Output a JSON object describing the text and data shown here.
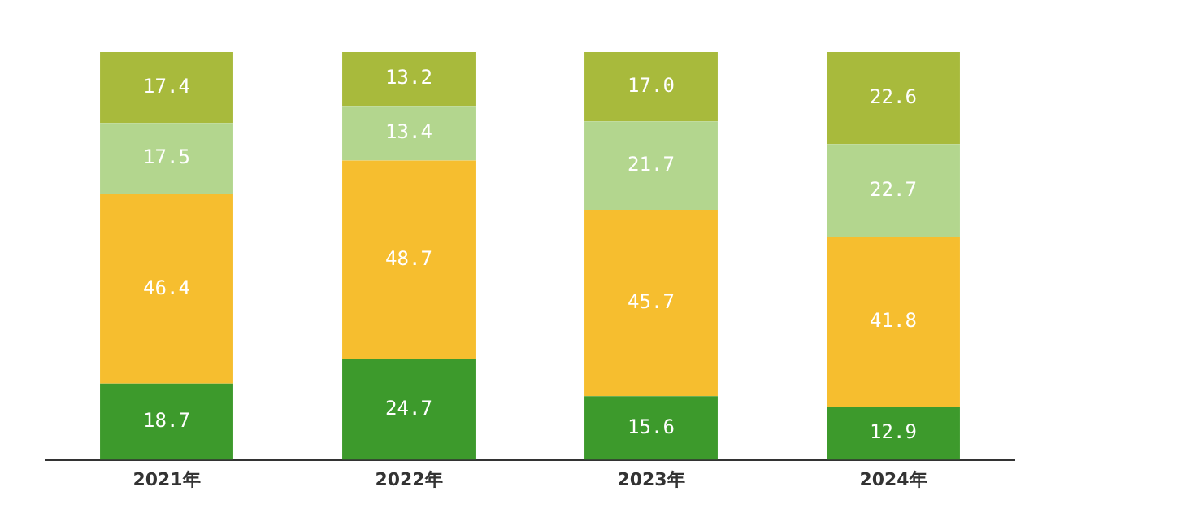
{
  "chart_data": {
    "type": "bar",
    "stacked": true,
    "legend": false,
    "grid": false,
    "categories": [
      "2021年",
      "2022年",
      "2023年",
      "2024年"
    ],
    "series": [
      {
        "color": "#3d9a2c",
        "values": [
          18.7,
          24.7,
          15.6,
          12.9
        ],
        "value_labels": [
          "18.7",
          "24.7",
          "15.6",
          "12.9"
        ]
      },
      {
        "color": "#f6be2f",
        "values": [
          46.4,
          48.7,
          45.7,
          41.8
        ],
        "value_labels": [
          "46.4",
          "48.7",
          "45.7",
          "41.8"
        ]
      },
      {
        "color": "#b3d68e",
        "values": [
          17.5,
          13.4,
          21.7,
          22.7
        ],
        "value_labels": [
          "17.5",
          "13.4",
          "21.7",
          "22.7"
        ]
      },
      {
        "color": "#a8ba3c",
        "values": [
          17.4,
          13.2,
          17.0,
          22.6
        ],
        "value_labels": [
          "17.4",
          "13.2",
          "17.0",
          "22.6"
        ]
      }
    ]
  }
}
